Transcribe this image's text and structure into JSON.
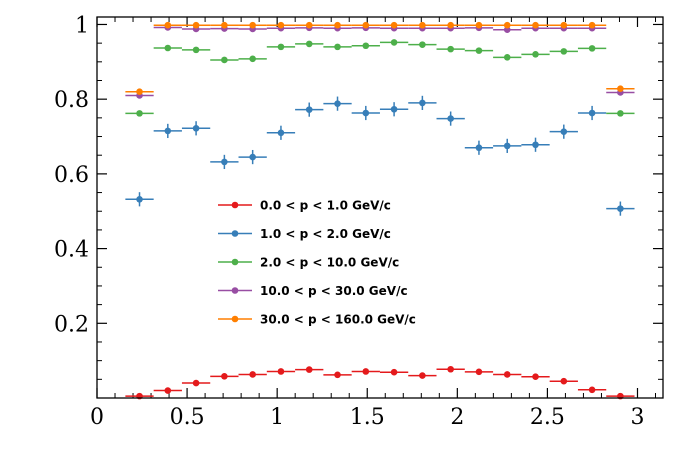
{
  "chart_data": {
    "type": "scatter",
    "title": "",
    "xlabel": "",
    "ylabel": "",
    "xlim": [
      0,
      3.14159
    ],
    "ylim": [
      0,
      1.02
    ],
    "grid": false,
    "legend_placement": "center-left",
    "x_ticks": [
      {
        "value": 0,
        "label": "0"
      },
      {
        "value": 0.5,
        "label": "0.5"
      },
      {
        "value": 1,
        "label": "1"
      },
      {
        "value": 1.5,
        "label": "1.5"
      },
      {
        "value": 2,
        "label": "2"
      },
      {
        "value": 2.5,
        "label": "2.5"
      },
      {
        "value": 3,
        "label": "3"
      }
    ],
    "y_ticks": [
      {
        "value": 0.2,
        "label": "0.2"
      },
      {
        "value": 0.4,
        "label": "0.4"
      },
      {
        "value": 0.6,
        "label": "0.6"
      },
      {
        "value": 0.8,
        "label": "0.8"
      },
      {
        "value": 1,
        "label": "1"
      }
    ],
    "x": [
      0.236,
      0.393,
      0.55,
      0.707,
      0.864,
      1.021,
      1.178,
      1.335,
      1.492,
      1.649,
      1.806,
      1.963,
      2.12,
      2.277,
      2.434,
      2.591,
      2.748,
      2.905
    ],
    "x_halfwidth": 0.0785,
    "series": [
      {
        "name": "0.0 < p < 1.0 GeV/c",
        "color": "#e41a1c",
        "values": [
          0.005,
          0.02,
          0.04,
          0.058,
          0.063,
          0.071,
          0.076,
          0.062,
          0.071,
          0.069,
          0.06,
          0.077,
          0.07,
          0.063,
          0.057,
          0.045,
          0.022,
          0.005
        ],
        "errors": [
          0.003,
          0.004,
          0.004,
          0.004,
          0.004,
          0.004,
          0.004,
          0.004,
          0.004,
          0.004,
          0.004,
          0.004,
          0.004,
          0.004,
          0.004,
          0.004,
          0.004,
          0.003
        ]
      },
      {
        "name": "1.0 < p < 2.0 GeV/c",
        "color": "#377eb8",
        "values": [
          0.532,
          0.715,
          0.722,
          0.632,
          0.645,
          0.71,
          0.772,
          0.788,
          0.763,
          0.773,
          0.79,
          0.748,
          0.67,
          0.675,
          0.678,
          0.713,
          0.763,
          0.507
        ],
        "errors": [
          0.019,
          0.019,
          0.019,
          0.019,
          0.019,
          0.019,
          0.019,
          0.019,
          0.019,
          0.019,
          0.019,
          0.019,
          0.019,
          0.019,
          0.019,
          0.019,
          0.019,
          0.019
        ]
      },
      {
        "name": "2.0 < p < 10.0 GeV/c",
        "color": "#4daf4a",
        "values": [
          0.762,
          0.937,
          0.932,
          0.905,
          0.908,
          0.94,
          0.948,
          0.94,
          0.943,
          0.952,
          0.946,
          0.934,
          0.93,
          0.912,
          0.92,
          0.928,
          0.936,
          0.762
        ],
        "errors": [
          0.004,
          0.004,
          0.004,
          0.004,
          0.004,
          0.004,
          0.004,
          0.004,
          0.004,
          0.004,
          0.004,
          0.004,
          0.004,
          0.004,
          0.004,
          0.004,
          0.004,
          0.004
        ]
      },
      {
        "name": "10.0 < p < 30.0 GeV/c",
        "color": "#984ea3",
        "values": [
          0.81,
          0.992,
          0.988,
          0.989,
          0.988,
          0.99,
          0.991,
          0.99,
          0.991,
          0.99,
          0.99,
          0.99,
          0.991,
          0.986,
          0.99,
          0.99,
          0.99,
          0.818
        ],
        "errors": [
          0.004,
          0.003,
          0.003,
          0.003,
          0.003,
          0.003,
          0.003,
          0.003,
          0.003,
          0.003,
          0.003,
          0.003,
          0.003,
          0.003,
          0.003,
          0.003,
          0.003,
          0.004
        ]
      },
      {
        "name": "30.0 < p < 160.0 GeV/c",
        "color": "#ff7f00",
        "values": [
          0.82,
          0.998,
          0.998,
          0.998,
          0.998,
          0.998,
          0.998,
          0.998,
          0.998,
          0.998,
          0.998,
          0.998,
          0.998,
          0.998,
          0.998,
          0.998,
          0.998,
          0.828
        ],
        "errors": [
          0.003,
          0.002,
          0.002,
          0.002,
          0.002,
          0.002,
          0.002,
          0.002,
          0.002,
          0.002,
          0.002,
          0.002,
          0.002,
          0.002,
          0.002,
          0.002,
          0.002,
          0.003
        ]
      }
    ]
  }
}
